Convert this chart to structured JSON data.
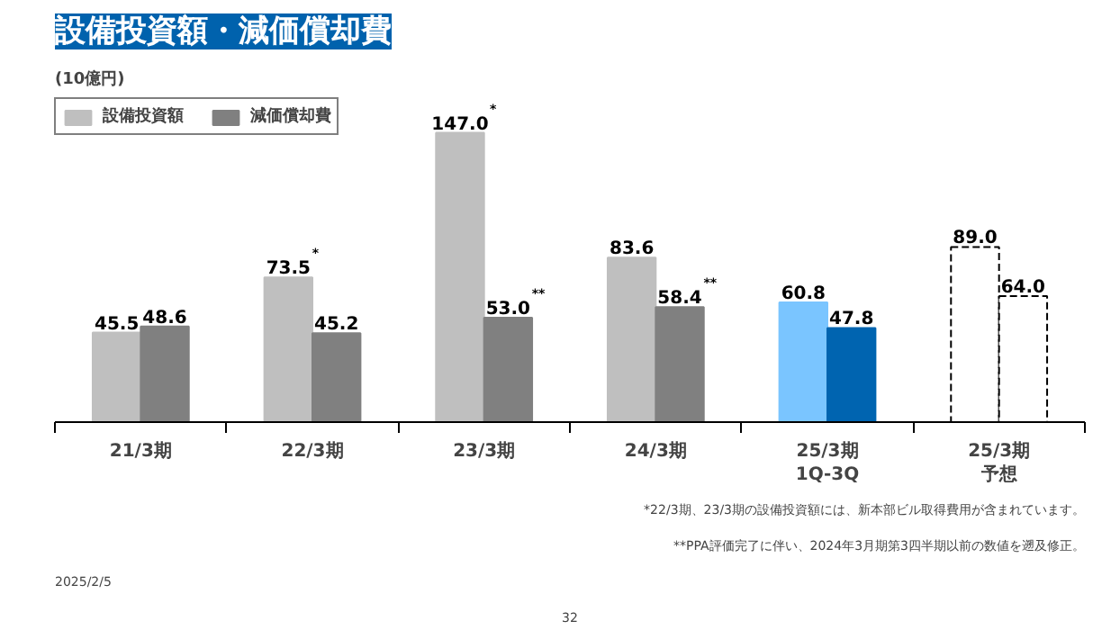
{
  "chart_data": {
    "type": "bar",
    "title": "設備投資額・減価償却費",
    "ylabel": "(10億円)",
    "categories": [
      "21/3期",
      "22/3期",
      "23/3期",
      "24/3期",
      "25/3期1Q-3Q",
      "25/3期予想"
    ],
    "series": [
      {
        "name": "設備投資額",
        "color": "#bfbfbf",
        "colors": [
          "#bfbfbf",
          "#bfbfbf",
          "#bfbfbf",
          "#bfbfbf",
          "#7ac5ff",
          "#ffffff"
        ],
        "line_style": [
          "solid",
          "solid",
          "solid",
          "solid",
          "solid",
          "dashed"
        ],
        "values": [
          45.5,
          73.5,
          147.0,
          83.6,
          60.8,
          89.0
        ],
        "value_labels": [
          "45.5",
          "73.5$^{*}$",
          "147.0$^{*}$",
          "83.6",
          "60.8",
          "89.0"
        ]
      },
      {
        "name": "減価償却費",
        "color": "#808080",
        "colors": [
          "#808080",
          "#808080",
          "#808080",
          "#808080",
          "#0064b0",
          "#ffffff"
        ],
        "line_style": [
          "solid",
          "solid",
          "solid",
          "solid",
          "solid",
          "dashed"
        ],
        "values": [
          48.6,
          45.2,
          53.0,
          58.4,
          47.8,
          64.0
        ],
        "value_labels": [
          "48.6",
          "45.2",
          "53.0$^{**}$",
          "58.4$^{**}$",
          "47.8",
          "64.0"
        ]
      }
    ],
    "legend": "top left",
    "grid": false,
    "annotations": [
      "*22/3期、23/3期の設備投資額には、新本部ビル取得費用が含まれています。",
      "**PPA評価完了に伴い、2024年3月期第3四半期以前の数値を遡及修正。",
      "2025/2/5",
      "32"
    ]
  }
}
